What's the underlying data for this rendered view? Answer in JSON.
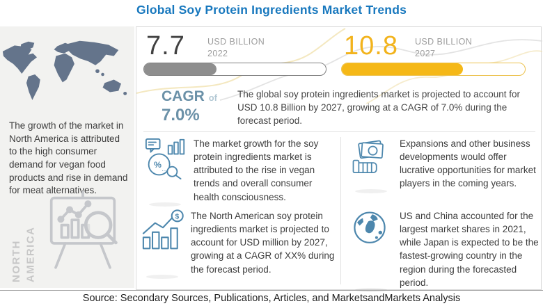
{
  "title": "Global Soy Protein Ingredients Market Trends",
  "source_line": "Source: Secondary Sources, Publications, Articles, and MarketsandMarkets Analysis",
  "sidebar": {
    "region_label": "NORTH\nAMERICA",
    "description": "The growth of the market in North America is attributed to the high consumer demand for vegan food products and rise in demand for meat alternatives."
  },
  "stats": {
    "current": {
      "value": "7.7",
      "unit": "USD BILLION",
      "year": "2022",
      "bar_fill_pct": 40
    },
    "forecast": {
      "value": "10.8",
      "unit": "USD BILLION",
      "year": "2027",
      "bar_fill_pct": 66
    },
    "cagr": {
      "label": "CAGR",
      "of": "of",
      "value": "7.0%"
    },
    "summary": "The global soy protein ingredients market is projected to account for USD 10.8 Billion by 2027, growing at a CAGR of 7.0% during the forecast period."
  },
  "insights": [
    {
      "icon": "market-research-icon",
      "text": "The market growth for the soy protein ingredients market is attributed to the rise in vegan trends and overall consumer health consciousness."
    },
    {
      "icon": "money-hand-icon",
      "text": "Expansions and other business developments would offer lucrative opportunities for market players in the coming years."
    },
    {
      "icon": "growth-chart-icon",
      "text": "The North American soy protein ingredients market is projected to account for USD  million by 2027, growing at a CAGR of XX% during the forecast period."
    },
    {
      "icon": "globe-icon",
      "text": "US and China accounted for the largest market shares in 2021, while Japan is expected to be the fastest-growing country in the region during the forecasted period."
    }
  ],
  "colors": {
    "title_blue": "#1878BE",
    "gold": "#F2B31C",
    "gold_bar": "#F5B817",
    "gray_bar": "#8E8E8E",
    "steel_blue": "#6B91A8",
    "icon_blue": "#4D87AD",
    "map_slate": "#64748B",
    "sidebar_bg": "#F2F2F0"
  },
  "chart_data": {
    "type": "bar",
    "title": "Global Soy Protein Ingredients Market Trends",
    "categories": [
      "2022",
      "2027"
    ],
    "values": [
      7.7,
      10.8
    ],
    "unit": "USD Billion",
    "cagr_percent": 7.0,
    "notes": "Progress-pill style bars; 2022 shown gray ~40% filled, 2027 shown gold ~66% filled",
    "legend_position": "none",
    "grid": false
  }
}
